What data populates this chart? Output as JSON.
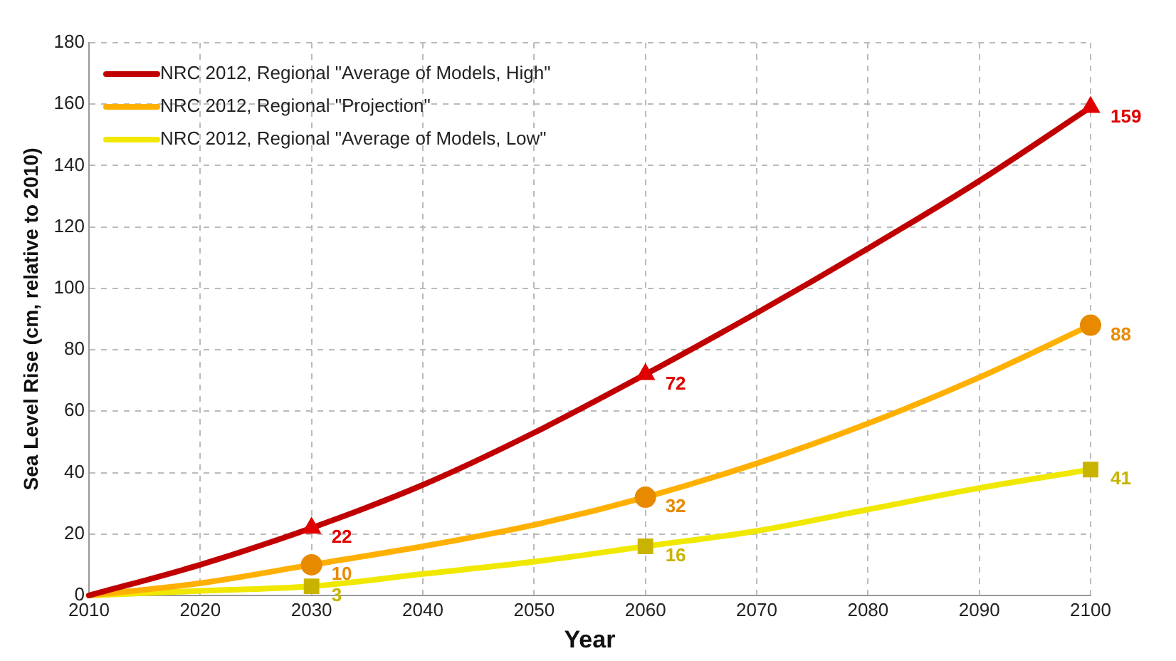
{
  "chart_data": {
    "type": "line",
    "xlabel": "Year",
    "ylabel": "Sea Level Rise (cm, relative to 2010)",
    "xlim": [
      2010,
      2100
    ],
    "xticks": [
      2010,
      2020,
      2030,
      2040,
      2050,
      2060,
      2070,
      2080,
      2090,
      2100
    ],
    "ylim": [
      0,
      180
    ],
    "yticks": [
      0,
      20,
      40,
      60,
      80,
      100,
      120,
      140,
      160,
      180
    ],
    "grid": true,
    "legend": "top left",
    "x": [
      2010,
      2020,
      2030,
      2040,
      2050,
      2060,
      2070,
      2080,
      2090,
      2100
    ],
    "series": [
      {
        "name": "NRC 2012, Regional \"Average of Models, High\"",
        "color": "#c00000",
        "marker": "none",
        "values": [
          0,
          10,
          22,
          36,
          53,
          72,
          92,
          113,
          135,
          159
        ]
      },
      {
        "name": "NRC 2012, Regional \"Projection\"",
        "color": "#ffb000",
        "marker": "none",
        "values": [
          0,
          4,
          10,
          16,
          23,
          32,
          43,
          56,
          71,
          88
        ]
      },
      {
        "name": "NRC 2012, Regional \"Average of Models, Low\"",
        "color": "#f0e800",
        "marker": "none",
        "values": [
          0,
          1.5,
          3,
          7,
          11,
          16,
          21,
          28,
          35,
          41
        ]
      },
      {
        "type": "scatter",
        "color": "#e00000",
        "marker": "triangle",
        "x": [
          2030,
          2060,
          2100
        ],
        "values": [
          22,
          72,
          159
        ],
        "value_labels": [
          "22",
          "72",
          "159"
        ]
      },
      {
        "type": "scatter",
        "color": "#e88a00",
        "marker": "circle",
        "x": [
          2030,
          2060,
          2100
        ],
        "values": [
          10,
          32,
          88
        ],
        "value_labels": [
          "10",
          "32",
          "88"
        ]
      },
      {
        "type": "scatter",
        "color": "#c8b400",
        "marker": "square",
        "x": [
          2030,
          2060,
          2100
        ],
        "values": [
          3,
          16,
          41
        ],
        "value_labels": [
          "3",
          "16",
          "41"
        ]
      }
    ]
  }
}
